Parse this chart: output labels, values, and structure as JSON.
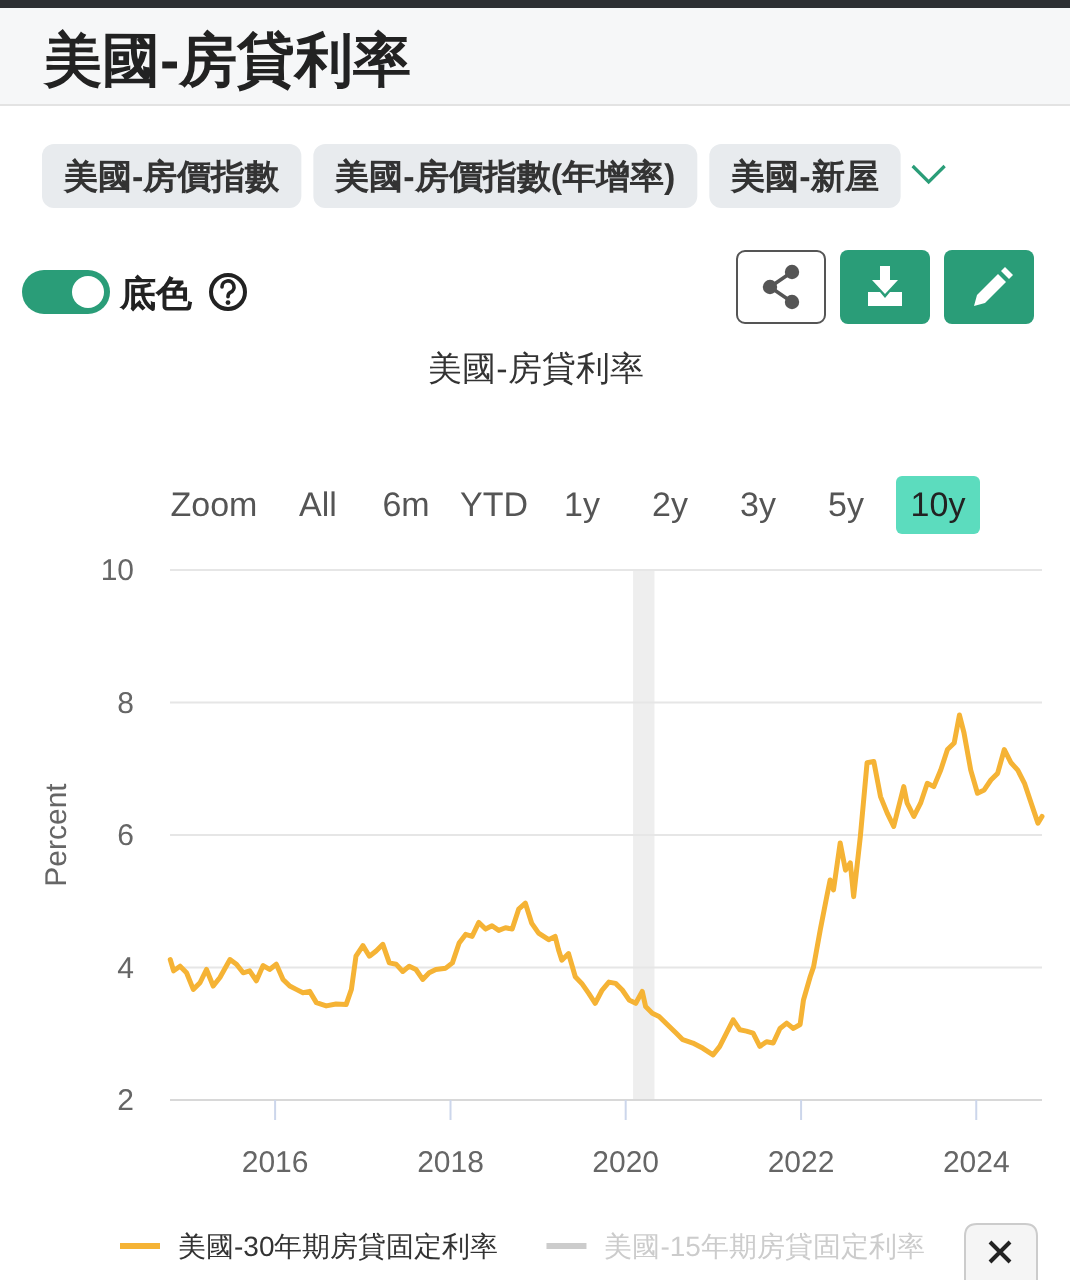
{
  "chart_data": {
    "type": "line",
    "title": "美國-房貸利率",
    "ylabel": "Percent",
    "annotations": [
      "美國-房貸利率",
      "美國-房價指數",
      "美國-房價指數(年增率)",
      "美國-新屋",
      "底色",
      "Zoom",
      "All",
      "6m",
      "YTD",
      "1y",
      "2y",
      "3y",
      "5y",
      "10y"
    ],
    "xlim": [
      "2014-10-20",
      "2024-10-01"
    ],
    "xticks": [
      "2016",
      "2018",
      "2020",
      "2022",
      "2024"
    ],
    "ylim": [
      2,
      10
    ],
    "yticks": [
      2,
      4,
      6,
      8,
      10
    ],
    "grid": "y",
    "legend": "bottom",
    "line_style": "solid",
    "bands": [
      {
        "axis": "x",
        "from": "2020-02-01",
        "to": "2020-04-30",
        "color": "#eeeeee"
      }
    ],
    "series": [
      {
        "name": "美國-30年期房貸固定利率",
        "color": "#f5b335",
        "x": [
          "2014-10-21",
          "2014-11-04",
          "2014-12-01",
          "2014-12-28",
          "2015-01-25",
          "2015-02-22",
          "2015-03-21",
          "2015-04-18",
          "2015-05-16",
          "2015-06-27",
          "2015-07-24",
          "2015-08-21",
          "2015-09-17",
          "2015-10-15",
          "2015-11-12",
          "2015-12-09",
          "2016-01-06",
          "2016-02-03",
          "2016-03-02",
          "2016-03-29",
          "2016-04-26",
          "2016-05-24",
          "2016-06-21",
          "2016-08-01",
          "2016-09-11",
          "2016-10-23",
          "2016-11-14",
          "2016-12-03",
          "2017-01-01",
          "2017-01-28",
          "2017-02-25",
          "2017-03-25",
          "2017-04-21",
          "2017-05-19",
          "2017-06-16",
          "2017-07-13",
          "2017-08-10",
          "2017-09-07",
          "2017-10-04",
          "2017-11-01",
          "2017-12-12",
          "2018-01-09",
          "2018-02-06",
          "2018-03-05",
          "2018-04-01",
          "2018-04-29",
          "2018-05-27",
          "2018-06-23",
          "2018-07-21",
          "2018-08-18",
          "2018-09-15",
          "2018-10-12",
          "2018-11-09",
          "2018-12-05",
          "2019-01-03",
          "2019-02-14",
          "2019-03-13",
          "2019-03-27",
          "2019-04-10",
          "2019-05-08",
          "2019-06-05",
          "2019-07-02",
          "2019-07-31",
          "2019-08-27",
          "2019-09-25",
          "2019-10-23",
          "2019-11-20",
          "2019-12-18",
          "2020-01-15",
          "2020-02-12",
          "2020-03-10",
          "2020-03-24",
          "2020-04-21",
          "2020-05-19",
          "2020-07-01",
          "2020-07-29",
          "2020-08-26",
          "2020-10-07",
          "2020-11-18",
          "2020-12-30",
          "2021-01-27",
          "2021-02-24",
          "2021-03-24",
          "2021-04-21",
          "2021-05-18",
          "2021-06-15",
          "2021-07-13",
          "2021-08-10",
          "2021-09-07",
          "2021-10-05",
          "2021-11-02",
          "2021-11-30",
          "2021-12-28",
          "2022-01-11",
          "2022-02-08",
          "2022-02-22",
          "2022-03-22",
          "2022-04-18",
          "2022-05-02",
          "2022-05-16",
          "2022-06-13",
          "2022-07-05",
          "2022-07-25",
          "2022-08-08",
          "2022-09-05",
          "2022-10-03",
          "2022-10-31",
          "2022-11-28",
          "2022-12-26",
          "2023-01-22",
          "2023-02-05",
          "2023-03-05",
          "2023-03-19",
          "2023-04-16",
          "2023-05-14",
          "2023-06-11",
          "2023-07-08",
          "2023-08-06",
          "2023-09-03",
          "2023-10-01",
          "2023-10-23",
          "2023-11-11",
          "2023-12-09",
          "2024-01-06",
          "2024-02-03",
          "2024-03-02",
          "2024-03-30",
          "2024-04-27",
          "2024-05-25",
          "2024-06-22",
          "2024-07-20",
          "2024-08-17",
          "2024-09-14",
          "2024-10-01"
        ],
        "values": [
          4.12,
          3.95,
          4.02,
          3.92,
          3.67,
          3.77,
          3.97,
          3.72,
          3.85,
          4.12,
          4.05,
          3.92,
          3.95,
          3.8,
          4.03,
          3.97,
          4.05,
          3.82,
          3.72,
          3.67,
          3.62,
          3.64,
          3.47,
          3.42,
          3.45,
          3.44,
          3.67,
          4.17,
          4.33,
          4.17,
          4.25,
          4.35,
          4.07,
          4.05,
          3.94,
          4.02,
          3.97,
          3.82,
          3.92,
          3.97,
          3.99,
          4.07,
          4.37,
          4.5,
          4.47,
          4.68,
          4.58,
          4.63,
          4.56,
          4.6,
          4.58,
          4.88,
          4.97,
          4.67,
          4.52,
          4.42,
          4.47,
          4.27,
          4.11,
          4.21,
          3.86,
          3.76,
          3.61,
          3.46,
          3.66,
          3.78,
          3.76,
          3.66,
          3.51,
          3.46,
          3.64,
          3.41,
          3.31,
          3.26,
          3.11,
          3.01,
          2.91,
          2.86,
          2.78,
          2.68,
          2.81,
          3.01,
          3.21,
          3.06,
          3.04,
          3.01,
          2.81,
          2.88,
          2.86,
          3.08,
          3.16,
          3.08,
          3.14,
          3.51,
          3.86,
          4.01,
          4.57,
          5.07,
          5.32,
          5.17,
          5.88,
          5.47,
          5.58,
          5.07,
          5.98,
          7.09,
          7.11,
          6.58,
          6.33,
          6.13,
          6.33,
          6.73,
          6.48,
          6.28,
          6.48,
          6.78,
          6.73,
          6.98,
          7.29,
          7.39,
          7.81,
          7.54,
          6.98,
          6.63,
          6.68,
          6.83,
          6.93,
          7.29,
          7.09,
          6.98,
          6.78,
          6.48,
          6.18,
          6.28
        ]
      },
      {
        "name": "美國-15年期房貸固定利率",
        "color": "#cccccc"
      }
    ]
  }
}
